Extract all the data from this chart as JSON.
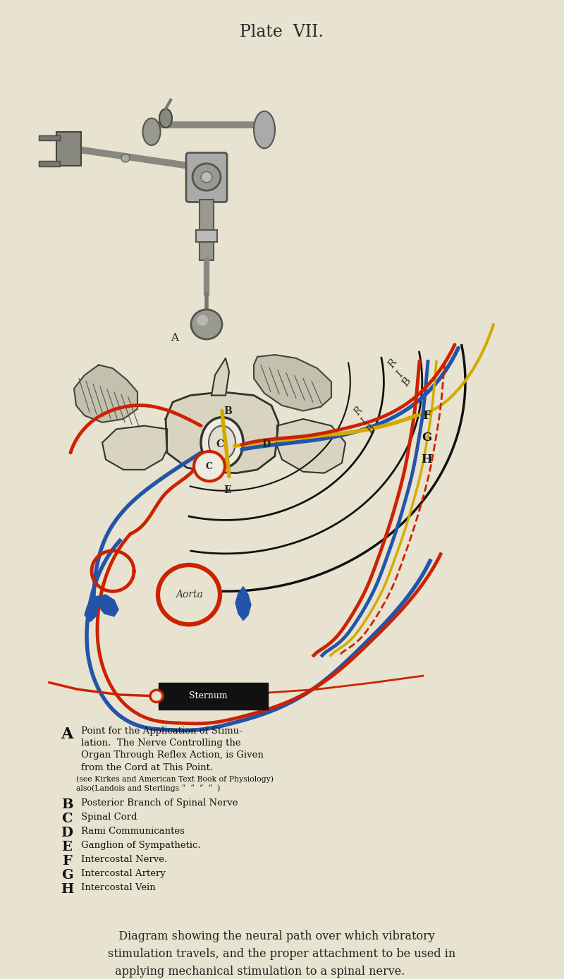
{
  "bg_color": "#e8e3d0",
  "title": "Plate  VII.",
  "title_fontsize": 17,
  "colors": {
    "red": "#cc2200",
    "blue": "#2255aa",
    "yellow": "#d4aa00",
    "black": "#111111",
    "grey_light": "#c8c6b4",
    "grey_dark": "#888880",
    "skin": "#d8d4c0",
    "tissue": "#c4c0ae"
  },
  "legend_A_lines": [
    "Point for the Application of Stimu-",
    "lation.  The Nerve Controlling the",
    "Organ Through Reflex Action, is Given",
    "from the Cord at This Point.",
    "(see Kirkes and American Text Book of Physiology)",
    "also(Landois and Sterlings “  “  “  “  )"
  ],
  "legend_items": [
    [
      "B",
      "Posterior Branch of Spinal Nerve"
    ],
    [
      "C",
      "Spinal Cord"
    ],
    [
      "D",
      "Rami Communicantes"
    ],
    [
      "E",
      "Ganglion of Sympathetic."
    ],
    [
      "F",
      "Intercostal Nerve."
    ],
    [
      "G",
      "Intercostal Artery"
    ],
    [
      "H",
      "Intercostal Vein"
    ]
  ],
  "bottom_text": "   Diagram showing the neural path over which vibratory\nstimulation travels, and the proper attachment to be used in\n  applying mechanical stimulation to a spinal nerve."
}
